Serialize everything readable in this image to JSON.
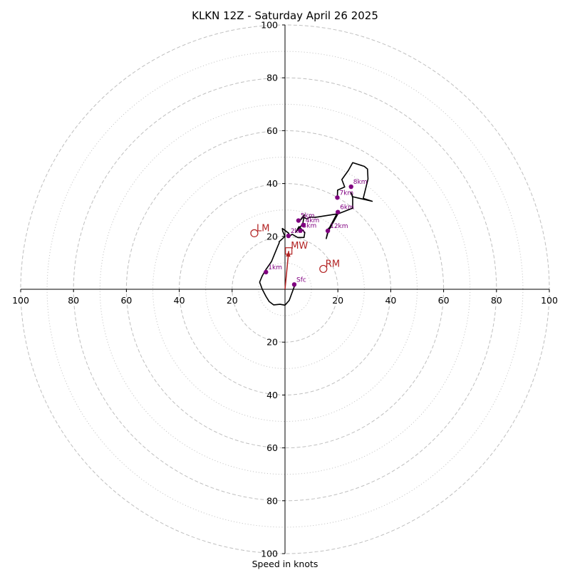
{
  "chart_data": {
    "type": "hodograph",
    "title": "KLKN 12Z - Saturday April 26 2025",
    "xlabel": "Speed in knots",
    "range": 100,
    "ring_major": [
      20,
      40,
      60,
      80,
      100
    ],
    "ring_minor": [
      10,
      30,
      50,
      70,
      90
    ],
    "x_ticks": [
      {
        "v": -100,
        "label": "100"
      },
      {
        "v": -80,
        "label": "80"
      },
      {
        "v": -60,
        "label": "60"
      },
      {
        "v": -40,
        "label": "40"
      },
      {
        "v": -20,
        "label": "20"
      },
      {
        "v": 20,
        "label": "20"
      },
      {
        "v": 40,
        "label": "40"
      },
      {
        "v": 60,
        "label": "60"
      },
      {
        "v": 80,
        "label": "80"
      },
      {
        "v": 100,
        "label": "100"
      }
    ],
    "y_ticks": [
      {
        "v": 100,
        "label": "100"
      },
      {
        "v": 80,
        "label": "80"
      },
      {
        "v": 60,
        "label": "60"
      },
      {
        "v": 40,
        "label": "40"
      },
      {
        "v": 20,
        "label": "20"
      },
      {
        "v": -20,
        "label": "20"
      },
      {
        "v": -40,
        "label": "40"
      },
      {
        "v": -60,
        "label": "60"
      },
      {
        "v": -80,
        "label": "80"
      },
      {
        "v": -100,
        "label": "100"
      }
    ],
    "trace": [
      [
        3.8,
        1.8
      ],
      [
        1.6,
        -4.2
      ],
      [
        0,
        -6
      ],
      [
        -1.9,
        -5.7
      ],
      [
        -4.3,
        -5.9
      ],
      [
        -6,
        -4.6
      ],
      [
        -7.2,
        -2.7
      ],
      [
        -8.6,
        0
      ],
      [
        -9.6,
        2.7
      ],
      [
        -8.6,
        5.1
      ],
      [
        -7.2,
        7.5
      ],
      [
        -5.1,
        10.5
      ],
      [
        -3.8,
        13.7
      ],
      [
        -2.7,
        16.4
      ],
      [
        -2.2,
        17.5
      ],
      [
        -2.2,
        18
      ],
      [
        0,
        20
      ],
      [
        -0.9,
        22
      ],
      [
        -1,
        23
      ],
      [
        1.4,
        21.2
      ],
      [
        1.4,
        19.8
      ],
      [
        2.7,
        20.8
      ],
      [
        4.8,
        19.6
      ],
      [
        7.2,
        19.6
      ],
      [
        7.5,
        21.5
      ],
      [
        5.3,
        23.7
      ],
      [
        4,
        21.5
      ],
      [
        6.7,
        24.7
      ],
      [
        7.3,
        28.2
      ],
      [
        5.3,
        25.5
      ],
      [
        6.8,
        27.3
      ],
      [
        8.3,
        26.6
      ],
      [
        9.4,
        27.3
      ],
      [
        11.4,
        27.2
      ],
      [
        19.6,
        28.5
      ],
      [
        16.2,
        22.1
      ],
      [
        16.5,
        23.1
      ],
      [
        15.6,
        19.2
      ],
      [
        16.4,
        22
      ],
      [
        20,
        28.5
      ],
      [
        25.6,
        30.7
      ],
      [
        25.6,
        34.7
      ],
      [
        25,
        36.5
      ],
      [
        25.6,
        35
      ],
      [
        33,
        33.3
      ],
      [
        29.6,
        34.4
      ],
      [
        31.4,
        41.7
      ],
      [
        31.2,
        45.5
      ],
      [
        30,
        46.5
      ],
      [
        25.6,
        47.9
      ],
      [
        24,
        45
      ],
      [
        21.5,
        41.5
      ],
      [
        22.6,
        38.7
      ],
      [
        19.9,
        37.5
      ],
      [
        19.8,
        34.7
      ]
    ],
    "height_markers": [
      {
        "label": "Sfc",
        "u": 3.5,
        "v": 1.8
      },
      {
        "label": "1km",
        "u": -7.2,
        "v": 6.5
      },
      {
        "label": "2km",
        "u": 1.3,
        "v": 20.2
      },
      {
        "label": "3km",
        "u": 5.8,
        "v": 22.2
      },
      {
        "label": "4km",
        "u": 6.9,
        "v": 24.3
      },
      {
        "label": "5km",
        "u": 5.1,
        "v": 26
      },
      {
        "label": "6km",
        "u": 20,
        "v": 29.2
      },
      {
        "label": "7km",
        "u": 19.8,
        "v": 34.7
      },
      {
        "label": "8km",
        "u": 25,
        "v": 38.8
      },
      {
        "label": "12km",
        "u": 16.2,
        "v": 22.1
      }
    ],
    "storm_motion": [
      {
        "label": "LM",
        "u": -11.6,
        "v": 21.2,
        "marker": "circle"
      },
      {
        "label": "RM",
        "u": 14.5,
        "v": 7.7,
        "marker": "circle"
      },
      {
        "label": "MW",
        "u": 1.4,
        "v": 14.5,
        "marker": "square"
      }
    ],
    "mw_vector": {
      "u": 1.4,
      "v": 14.5
    },
    "colors": {
      "trace": "#000000",
      "markers": "#800080",
      "storm_motion": "#b22222",
      "rings": "#bfbfbf",
      "axes": "#000000"
    }
  }
}
